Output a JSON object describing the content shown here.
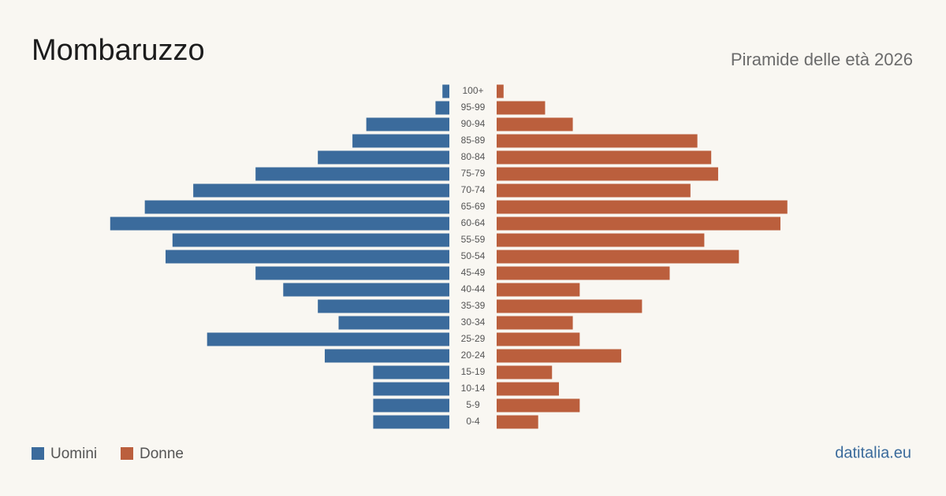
{
  "chart_data": {
    "type": "pyramid",
    "title": "Mombaruzzo",
    "subtitle": "Piramide delle età 2026",
    "source": "datitalia.eu",
    "categories": [
      "100+",
      "95-99",
      "90-94",
      "85-89",
      "80-84",
      "75-79",
      "70-74",
      "65-69",
      "60-64",
      "55-59",
      "50-54",
      "45-49",
      "40-44",
      "35-39",
      "30-34",
      "25-29",
      "20-24",
      "15-19",
      "10-14",
      "5-9",
      "0-4"
    ],
    "series": [
      {
        "name": "Uomini",
        "color": "#3b6b9c",
        "values": [
          1,
          2,
          12,
          14,
          19,
          28,
          37,
          44,
          49,
          40,
          41,
          28,
          24,
          19,
          16,
          35,
          18,
          11,
          11,
          11,
          11
        ]
      },
      {
        "name": "Donne",
        "color": "#bb5f3d",
        "values": [
          1,
          7,
          11,
          29,
          31,
          32,
          28,
          42,
          41,
          30,
          35,
          25,
          12,
          21,
          11,
          12,
          18,
          8,
          9,
          12,
          6
        ]
      }
    ]
  }
}
